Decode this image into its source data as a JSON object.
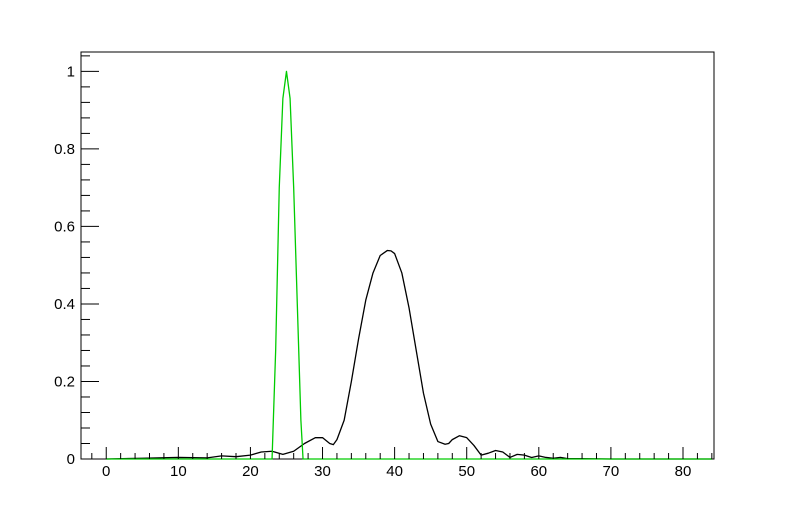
{
  "chart_data": {
    "type": "line",
    "title": "",
    "xlabel": "",
    "ylabel": "",
    "xlim": [
      -3.5,
      84.3
    ],
    "ylim": [
      0,
      1.05
    ],
    "grid": false,
    "x_ticks": [
      0,
      10,
      20,
      30,
      40,
      50,
      60,
      70,
      80
    ],
    "x_tick_labels": [
      "0",
      "10",
      "20",
      "30",
      "40",
      "50",
      "60",
      "70",
      "80"
    ],
    "y_ticks": [
      0,
      0.2,
      0.4,
      0.6,
      0.8,
      1
    ],
    "y_tick_labels": [
      "0",
      "0.2",
      "0.4",
      "0.6",
      "0.8",
      "1"
    ],
    "series": [
      {
        "color": "#000000",
        "x": [
          0,
          5,
          10,
          14,
          16,
          18,
          20,
          21.5,
          23,
          24.5,
          26,
          27.5,
          29,
          30,
          31,
          31.5,
          32,
          33,
          34,
          35,
          36,
          37,
          38,
          39,
          39.5,
          40,
          41,
          42,
          43,
          44,
          45,
          46,
          47,
          47.5,
          48,
          49,
          50,
          51,
          52,
          53,
          54,
          55,
          56,
          57,
          58,
          59,
          60,
          61,
          62,
          63,
          64,
          66,
          70,
          80,
          84
        ],
        "y": [
          0,
          0.002,
          0.004,
          0.003,
          0.008,
          0.006,
          0.01,
          0.018,
          0.02,
          0.012,
          0.02,
          0.04,
          0.055,
          0.055,
          0.04,
          0.037,
          0.05,
          0.1,
          0.2,
          0.31,
          0.41,
          0.48,
          0.525,
          0.538,
          0.537,
          0.53,
          0.48,
          0.39,
          0.28,
          0.17,
          0.09,
          0.045,
          0.038,
          0.04,
          0.05,
          0.06,
          0.055,
          0.035,
          0.01,
          0.015,
          0.022,
          0.018,
          0.004,
          0.012,
          0.01,
          0.004,
          0.008,
          0.004,
          0.002,
          0.004,
          0.001,
          0.001,
          0,
          0,
          0
        ]
      },
      {
        "color": "#00cc00",
        "x": [
          0,
          23,
          23.5,
          24,
          24.5,
          25,
          25.5,
          26,
          26.5,
          27,
          27.3,
          84
        ],
        "y": [
          0,
          0,
          0.28,
          0.7,
          0.93,
          1.0,
          0.93,
          0.7,
          0.4,
          0.1,
          0,
          0
        ]
      }
    ]
  }
}
